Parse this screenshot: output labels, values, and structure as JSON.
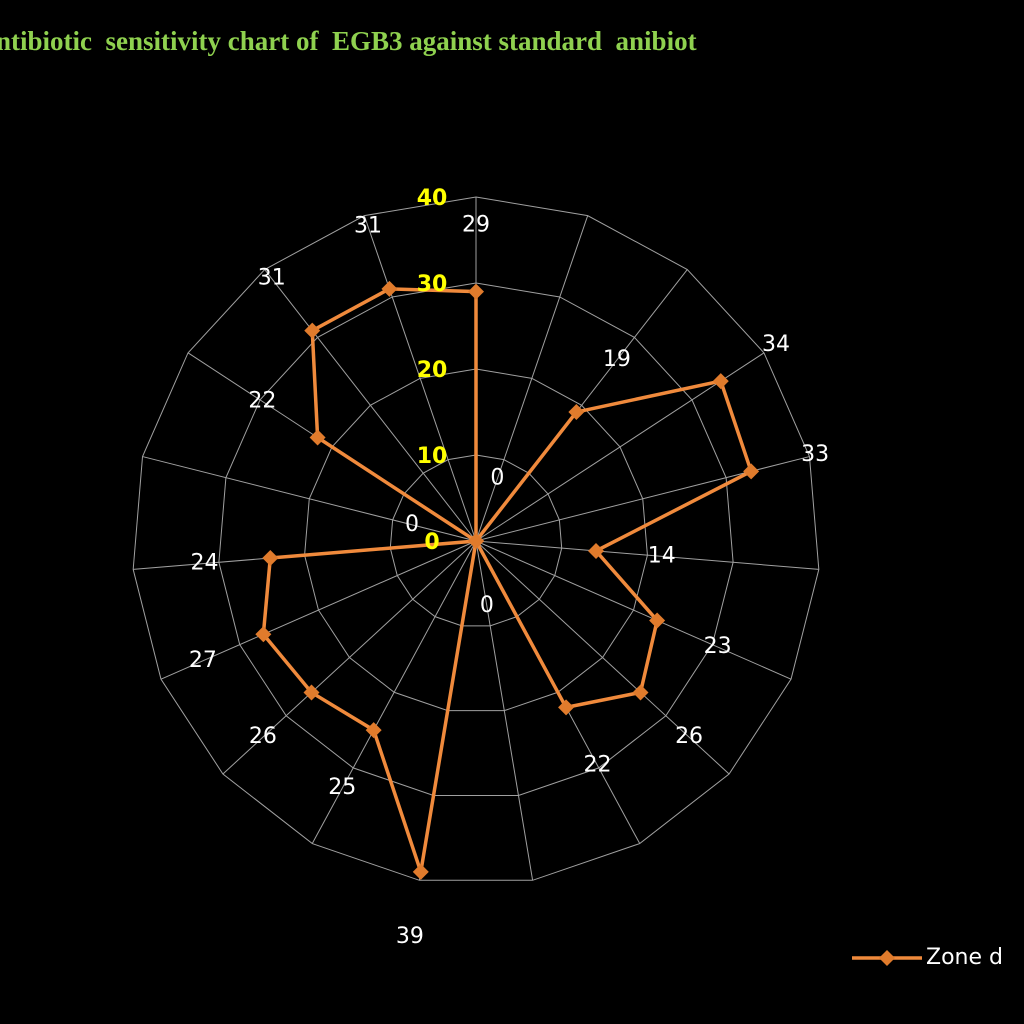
{
  "chart_data": {
    "type": "radar",
    "title": "ntibiotic  sensitivity chart of  EGB3 against standard  anibiot",
    "categories": [
      null,
      null,
      null,
      null,
      null,
      null,
      null,
      null,
      null,
      null,
      null,
      null,
      null,
      null,
      null,
      null,
      null,
      null,
      null
    ],
    "series": [
      {
        "name": "Zone d",
        "color": "#f08a3c",
        "values": [
          29,
          0,
          19,
          34,
          33,
          14,
          23,
          26,
          22,
          0,
          39,
          25,
          26,
          27,
          24,
          0,
          22,
          31,
          31
        ]
      }
    ],
    "ylim": [
      0,
      40
    ],
    "yticks": [
      0,
      10,
      20,
      30,
      40
    ],
    "grid": true,
    "legend": "bottom-right"
  }
}
